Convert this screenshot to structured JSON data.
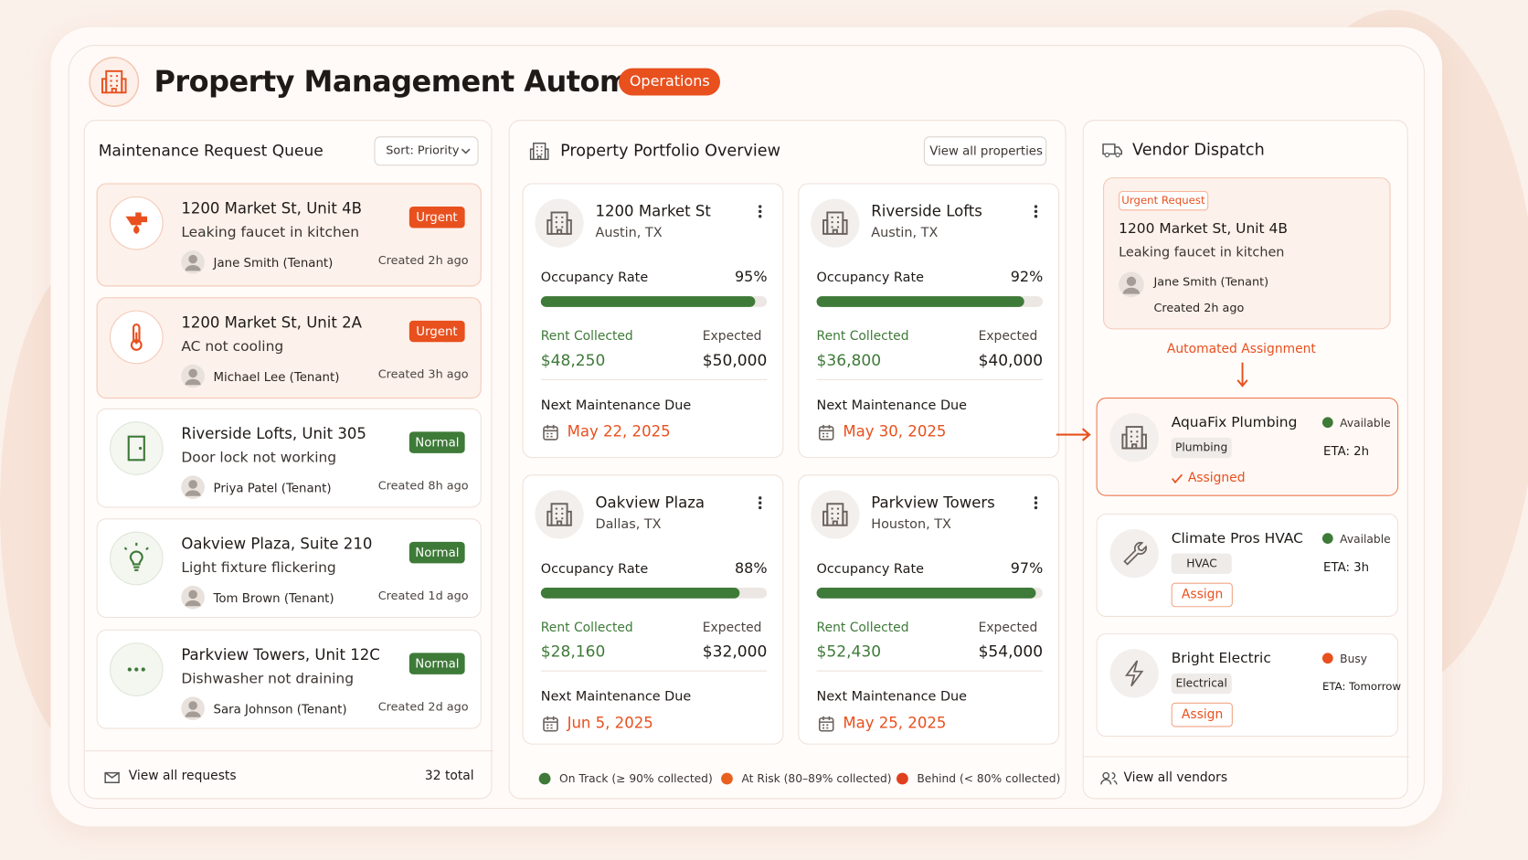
{
  "header": {
    "title": "Property Management Automator",
    "badge": "Operations"
  },
  "queue": {
    "title": "Maintenance Request Queue",
    "sort": "Sort: Priority",
    "requests": [
      {
        "address": "1200 Market St, Unit 4B",
        "issue": "Leaking faucet in kitchen",
        "tenant": "Jane Smith (Tenant)",
        "created": "Created 2h ago",
        "priority": "Urgent"
      },
      {
        "address": "1200 Market St, Unit 2A",
        "issue": "AC not cooling",
        "tenant": "Michael Lee (Tenant)",
        "created": "Created 3h ago",
        "priority": "Urgent"
      },
      {
        "address": "Riverside Lofts, Unit 305",
        "issue": "Door lock not working",
        "tenant": "Priya Patel (Tenant)",
        "created": "Created 8h ago",
        "priority": "Normal"
      },
      {
        "address": "Oakview Plaza, Suite 210",
        "issue": "Light fixture flickering",
        "tenant": "Tom Brown (Tenant)",
        "created": "Created 1d ago",
        "priority": "Normal"
      },
      {
        "address": "Parkview Towers, Unit 12C",
        "issue": "Dishwasher not draining",
        "tenant": "Sara Johnson (Tenant)",
        "created": "Created 2d ago",
        "priority": "Normal"
      }
    ],
    "footer": {
      "link": "View all requests",
      "total": "32 total"
    }
  },
  "portfolio": {
    "title": "Property Portfolio Overview",
    "button": "View all properties",
    "properties": [
      {
        "name": "1200 Market St",
        "city": "Austin, TX",
        "occupancy_label": "Occupancy Rate",
        "occupancy": {
          "value": 95,
          "label": "95%"
        },
        "rent_label": "Rent Collected",
        "rent": "$48,250",
        "expected_label": "Expected",
        "expected": "$50,000",
        "maintenance_label": "Next Maintenance Due",
        "maintenance_date": "May 22, 2025"
      },
      {
        "name": "Riverside Lofts",
        "city": "Austin, TX",
        "occupancy_label": "Occupancy Rate",
        "occupancy": {
          "value": 92,
          "label": "92%"
        },
        "rent_label": "Rent Collected",
        "rent": "$36,800",
        "expected_label": "Expected",
        "expected": "$40,000",
        "maintenance_label": "Next Maintenance Due",
        "maintenance_date": "May 30, 2025"
      },
      {
        "name": "Oakview Plaza",
        "city": "Dallas, TX",
        "occupancy_label": "Occupancy Rate",
        "occupancy": {
          "value": 88,
          "label": "88%"
        },
        "rent_label": "Rent Collected",
        "rent": "$28,160",
        "expected_label": "Expected",
        "expected": "$32,000",
        "maintenance_label": "Next Maintenance Due",
        "maintenance_date": "Jun 5, 2025"
      },
      {
        "name": "Parkview Towers",
        "city": "Houston, TX",
        "occupancy_label": "Occupancy Rate",
        "occupancy": {
          "value": 97,
          "label": "97%"
        },
        "rent_label": "Rent Collected",
        "rent": "$52,430",
        "expected_label": "Expected",
        "expected": "$54,000",
        "maintenance_label": "Next Maintenance Due",
        "maintenance_date": "May 25, 2025"
      }
    ],
    "legend": [
      {
        "label": "On Track (≥ 90% collected)",
        "color": "#3e7a38"
      },
      {
        "label": "At Risk (80–89% collected)",
        "color": "#e8601e"
      },
      {
        "label": "Behind (< 80% collected)",
        "color": "#e0401e"
      }
    ]
  },
  "vendor": {
    "title": "Vendor Dispatch",
    "request": {
      "tag": "Urgent Request",
      "address": "1200 Market St, Unit 4B",
      "issue": "Leaking faucet in kitchen",
      "tenant": "Jane Smith (Tenant)",
      "created": "Created 2h ago"
    },
    "assignment": "Automated Assignment",
    "vendors": [
      {
        "name": "AquaFix Plumbing",
        "category": "Plumbing",
        "status": "Available",
        "eta": "ETA: 2h",
        "action": "Assigned"
      },
      {
        "name": "Climate Pros HVAC",
        "category": "HVAC",
        "status": "Available",
        "eta": "ETA: 3h",
        "action": "Assign"
      },
      {
        "name": "Bright Electric",
        "category": "Electrical",
        "status": "Busy",
        "eta": "ETA: Tomorrow",
        "action": "Assign"
      }
    ],
    "footer": "View all vendors"
  }
}
